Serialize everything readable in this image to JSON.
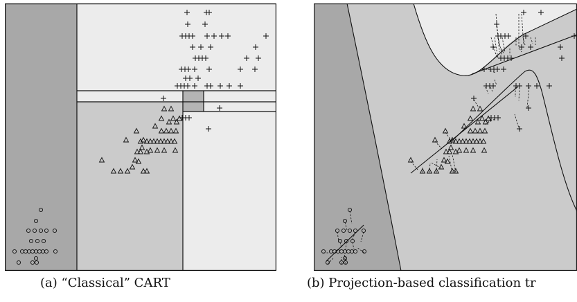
{
  "captions": {
    "a": "(a) “Classical” CART",
    "b": "(b) Projection-based classification tr"
  },
  "colors": {
    "region_dark": "#a8a8a8",
    "region_mid": "#cbcbcb",
    "region_light": "#ececec",
    "region_small": "#b4b4b4",
    "stroke": "#111111"
  },
  "markers": {
    "circle": "circle-marker",
    "triangle": "triangle-marker",
    "plus": "plus-marker"
  }
}
